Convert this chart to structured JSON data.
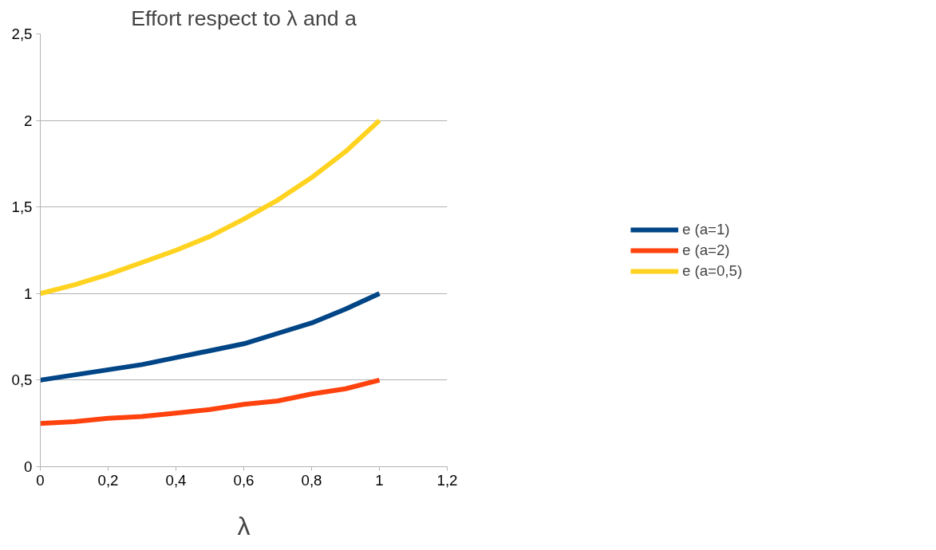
{
  "chart_data": {
    "type": "line",
    "title": "Effort respect to λ and a",
    "xlabel": "λ",
    "x": [
      0,
      0.1,
      0.2,
      0.3,
      0.4,
      0.5,
      0.6,
      0.7,
      0.8,
      0.9,
      1
    ],
    "series": [
      {
        "name": "e (a=1)",
        "color": "#004586",
        "values": [
          0.5,
          0.53,
          0.56,
          0.59,
          0.63,
          0.67,
          0.71,
          0.77,
          0.83,
          0.91,
          1
        ]
      },
      {
        "name": "e (a=2)",
        "color": "#ff420e",
        "values": [
          0.25,
          0.26,
          0.28,
          0.29,
          0.31,
          0.33,
          0.36,
          0.38,
          0.42,
          0.45,
          0.5
        ]
      },
      {
        "name": "e (a=0,5)",
        "color": "#ffd320",
        "values": [
          1,
          1.05,
          1.11,
          1.18,
          1.25,
          1.33,
          1.43,
          1.54,
          1.67,
          1.82,
          2
        ]
      }
    ],
    "xlim": [
      0,
      1.2
    ],
    "ylim": [
      0,
      2.5
    ],
    "xticks": [
      0,
      {
        "value": 0.2,
        "label": "0,2"
      },
      {
        "value": 0.4,
        "label": "0,4"
      },
      {
        "value": 0.6,
        "label": "0,6"
      },
      {
        "value": 0.8,
        "label": "0,8"
      },
      1,
      {
        "value": 1.2,
        "label": "1,2"
      }
    ],
    "yticks": [
      0,
      {
        "value": 0.5,
        "label": "0,5"
      },
      1,
      {
        "value": 1.5,
        "label": "1,5"
      },
      2,
      {
        "value": 2.5,
        "label": "2,5"
      }
    ],
    "grid": "y",
    "legend": "right",
    "marker": "none",
    "line_style": "solid"
  }
}
